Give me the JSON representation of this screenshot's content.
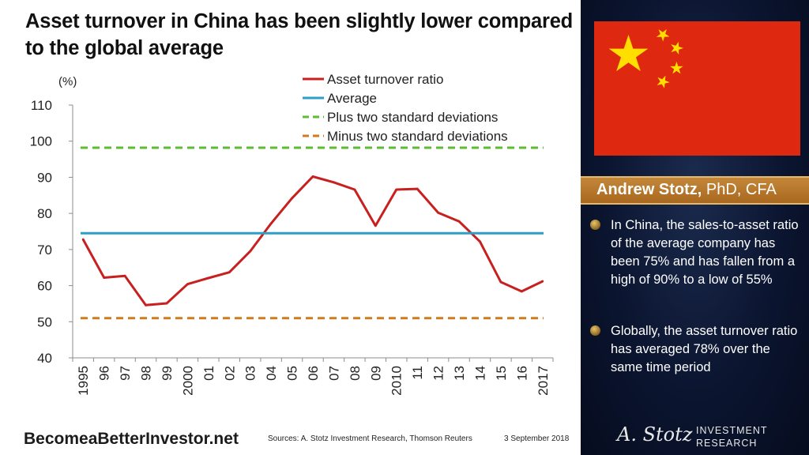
{
  "title": "Asset turnover in China has been slightly lower compared to the global average",
  "footer": {
    "site": "BecomeaBetterInvestor.net",
    "sources": "Sources: A. Stotz Investment Research, Thomson Reuters",
    "date": "3 September  2018"
  },
  "panel": {
    "author_name": "Andrew Stotz,",
    "author_credentials": " PhD, CFA",
    "bullets": [
      "In China, the sales-to-asset ratio of the average company has been 75% and has fallen from a high of 90% to a low of 55%",
      "Globally, the asset turnover ratio has averaged 78% over the same time period"
    ],
    "logo_signature": "A. Stotz",
    "logo_line1": "INVESTMENT",
    "logo_line2": "RESEARCH"
  },
  "colors": {
    "ratio": "#c8201f",
    "average": "#2e9fc4",
    "plus_sd": "#5bbd2f",
    "minus_sd": "#d07b1e",
    "flag_red": "#de2910",
    "flag_star": "#ffde00"
  },
  "chart_data": {
    "type": "line",
    "ylabel": "(%)",
    "ylim": [
      40,
      110
    ],
    "yticks": [
      40,
      50,
      60,
      70,
      80,
      90,
      100,
      110
    ],
    "x": [
      "1995",
      "96",
      "97",
      "98",
      "99",
      "2000",
      "01",
      "02",
      "03",
      "04",
      "05",
      "06",
      "07",
      "08",
      "09",
      "2010",
      "11",
      "12",
      "13",
      "14",
      "15",
      "16",
      "2017"
    ],
    "series": [
      {
        "name": "Asset turnover ratio",
        "style": "solid",
        "color_key": "ratio",
        "values": [
          72.8,
          62.2,
          62.7,
          54.6,
          55.1,
          60.4,
          62.1,
          63.7,
          69.5,
          77.2,
          84.2,
          90.2,
          88.6,
          86.6,
          76.6,
          86.6,
          86.8,
          80.2,
          77.8,
          72.2,
          61.0,
          58.4,
          61.2
        ]
      },
      {
        "name": "Average",
        "style": "solid",
        "color_key": "average",
        "constant": 74.5
      },
      {
        "name": "Plus two standard deviations",
        "style": "dashed",
        "color_key": "plus_sd",
        "constant": 98.2
      },
      {
        "name": "Minus two standard deviations",
        "style": "dashed",
        "color_key": "minus_sd",
        "constant": 51.0
      }
    ]
  }
}
